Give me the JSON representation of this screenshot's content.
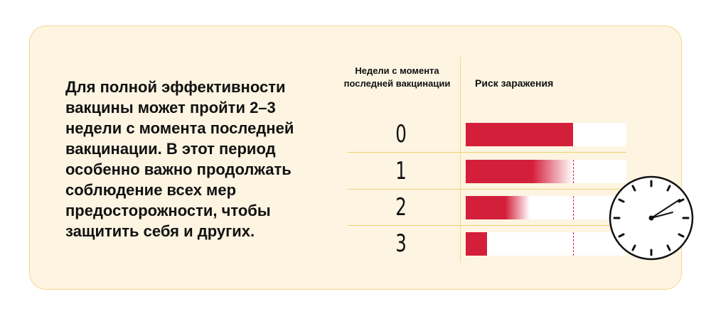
{
  "description_text": "Для полной эффективности вакцины может пройти 2–3 недели с момента последней вакцинации. В этот период особенно важно продолжать соблюдение всех мер предосторожности, чтобы защитить себя и других.",
  "columns": {
    "weeks": "Недели с момента последней вакцинации",
    "risk": "Риск заражения"
  },
  "colors": {
    "background": "#fdf4e2",
    "border": "#f3d98a",
    "risk_bar": "#d41f3a",
    "track": "#ffffff"
  },
  "icons": [
    "clock-icon"
  ],
  "chart_data": {
    "type": "bar",
    "categories": [
      "0",
      "1",
      "2",
      "3"
    ],
    "values": [
      1.0,
      1.0,
      0.6,
      0.2
    ],
    "fade": [
      false,
      true,
      true,
      false
    ],
    "reference_value": 1.0,
    "xlim": [
      0,
      1.5
    ]
  }
}
